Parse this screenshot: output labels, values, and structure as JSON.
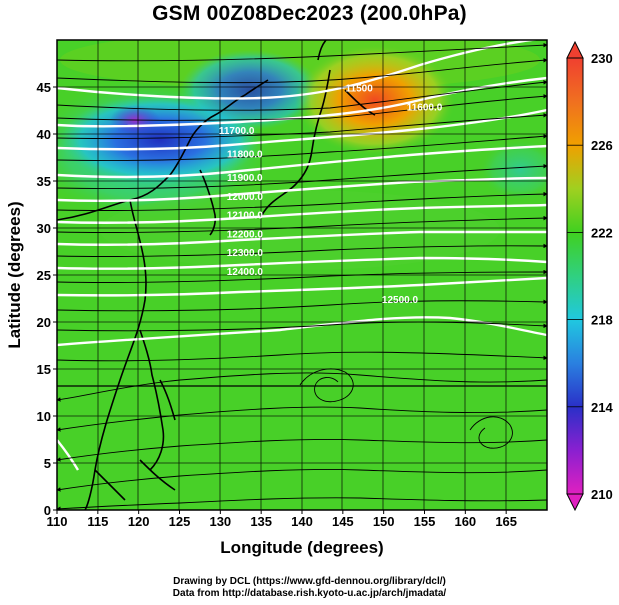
{
  "title": "GSM 00Z08Dec2023 (200.0hPa)",
  "xlabel": "Longitude (degrees)",
  "ylabel": "Latitude  (degrees)",
  "credits": {
    "line1": "Drawing by DCL (https://www.gfd-dennou.org/library/dcl/)",
    "line2": "Data from http://database.rish.kyoto-u.ac.jp/arch/jmadata/"
  },
  "chart_data": {
    "type": "heatmap",
    "xlim": [
      110,
      170
    ],
    "ylim": [
      0,
      50
    ],
    "x_ticks": [
      110,
      115,
      120,
      125,
      130,
      135,
      140,
      145,
      150,
      155,
      160,
      165
    ],
    "y_ticks": [
      0,
      5,
      10,
      15,
      20,
      25,
      30,
      35,
      40,
      45
    ],
    "grid": true,
    "colorbar": {
      "ticks": [
        210,
        214,
        218,
        222,
        226,
        230
      ],
      "range": [
        210,
        230
      ],
      "colors": [
        "#e020c0",
        "#3030d0",
        "#20c8e0",
        "#40d020",
        "#f0a000",
        "#f04030"
      ]
    },
    "contours": [
      {
        "label": "11500",
        "lat": 44.5
      },
      {
        "label": "11600.0",
        "lat": 42.5
      },
      {
        "label": "11700.0",
        "lat": 40.0
      },
      {
        "label": "11800.0",
        "lat": 37.5
      },
      {
        "label": "11900.0",
        "lat": 35.0
      },
      {
        "label": "12000.0",
        "lat": 33.0
      },
      {
        "label": "12100.0",
        "lat": 31.0
      },
      {
        "label": "12200.0",
        "lat": 29.0
      },
      {
        "label": "12300.0",
        "lat": 27.0
      },
      {
        "label": "12400.0",
        "lat": 25.0
      },
      {
        "label": "12500.0",
        "lat": 22.0
      }
    ]
  }
}
